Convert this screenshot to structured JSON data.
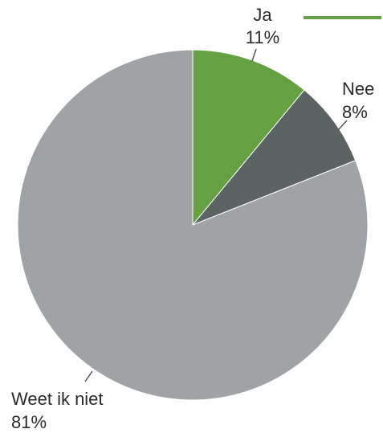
{
  "chart_data": {
    "type": "pie",
    "slices": [
      {
        "label": "Ja",
        "value": 11,
        "value_label": "11%",
        "color": "#65a042"
      },
      {
        "label": "Nee",
        "value": 8,
        "value_label": "8%",
        "color": "#5b6462"
      },
      {
        "label": "Weet ik niet",
        "value": 81,
        "value_label": "81%",
        "color": "#a0a3a6"
      }
    ]
  }
}
